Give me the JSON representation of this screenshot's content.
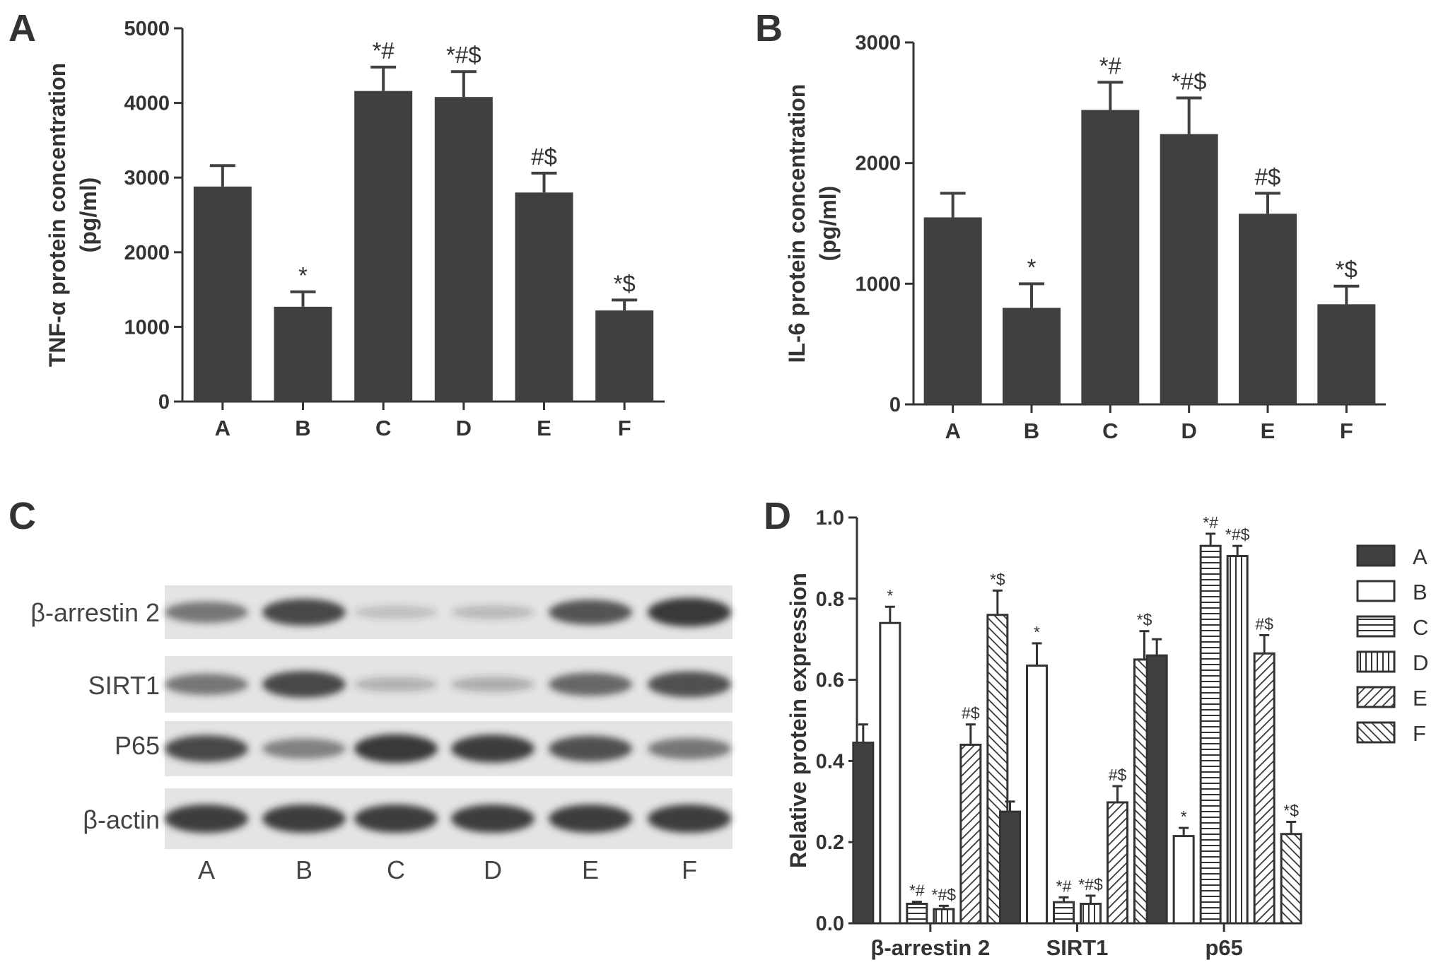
{
  "colors": {
    "dark_bar": "#404040",
    "ink": "#333333",
    "blot_bg": "#e4e4e4",
    "band": "#2e2e2e"
  },
  "chart_data": [
    {
      "panel": "A",
      "type": "bar",
      "ylabel_lines": [
        "TNF-α protein concentration",
        "(pg/ml)"
      ],
      "xlabel": "",
      "categories": [
        "A",
        "B",
        "C",
        "D",
        "E",
        "F"
      ],
      "values": [
        2880,
        1270,
        4160,
        4080,
        2800,
        1220
      ],
      "errors": [
        280,
        200,
        320,
        340,
        260,
        140
      ],
      "significance": [
        "",
        "*",
        "*#",
        "*#$",
        "#$",
        "*$"
      ],
      "ylim": [
        0,
        5000
      ],
      "yticks": [
        0,
        1000,
        2000,
        3000,
        4000,
        5000
      ],
      "ytick_labels": [
        "0",
        "1000",
        "2000",
        "3000",
        "4000",
        "5000"
      ]
    },
    {
      "panel": "B",
      "type": "bar",
      "ylabel_lines": [
        "IL-6 protein concentration",
        "(pg/ml)"
      ],
      "xlabel": "",
      "categories": [
        "A",
        "B",
        "C",
        "D",
        "E",
        "F"
      ],
      "values": [
        1550,
        800,
        2440,
        2240,
        1580,
        830
      ],
      "errors": [
        200,
        200,
        230,
        300,
        170,
        150
      ],
      "significance": [
        "",
        "*",
        "*#",
        "*#$",
        "#$",
        "*$"
      ],
      "ylim": [
        0,
        3000
      ],
      "yticks": [
        0,
        1000,
        2000,
        3000
      ],
      "ytick_labels": [
        "0",
        "1000",
        "2000",
        "3000"
      ]
    },
    {
      "panel": "D",
      "type": "bar",
      "ylabel": "Relative protein expression",
      "xlabel": "",
      "categories": [
        "β-arrestin 2",
        "SIRT1",
        "p65"
      ],
      "series": [
        {
          "name": "A",
          "values": [
            0.445,
            0.275,
            0.66
          ],
          "errors": [
            0.045,
            0.025,
            0.04
          ],
          "sig": [
            "",
            "",
            ""
          ]
        },
        {
          "name": "B",
          "values": [
            0.74,
            0.635,
            0.215
          ],
          "errors": [
            0.04,
            0.055,
            0.02
          ],
          "sig": [
            "*",
            "*",
            "*"
          ]
        },
        {
          "name": "C",
          "values": [
            0.048,
            0.052,
            0.93
          ],
          "errors": [
            0.005,
            0.012,
            0.03
          ],
          "sig": [
            "*#",
            "*#",
            "*#"
          ]
        },
        {
          "name": "D",
          "values": [
            0.035,
            0.048,
            0.905
          ],
          "errors": [
            0.008,
            0.02,
            0.025
          ],
          "sig": [
            "*#$",
            "*#$",
            "*#$"
          ]
        },
        {
          "name": "E",
          "values": [
            0.44,
            0.298,
            0.665
          ],
          "errors": [
            0.05,
            0.04,
            0.045
          ],
          "sig": [
            "#$",
            "#$",
            "#$"
          ]
        },
        {
          "name": "F",
          "values": [
            0.76,
            0.65,
            0.22
          ],
          "errors": [
            0.06,
            0.07,
            0.03
          ],
          "sig": [
            "*$",
            "*$",
            "*$"
          ]
        }
      ],
      "ylim": [
        0,
        1.0
      ],
      "yticks": [
        0,
        0.2,
        0.4,
        0.6,
        0.8,
        1.0
      ],
      "ytick_labels": [
        "0.0",
        "0.2",
        "0.4",
        "0.6",
        "0.8",
        "1.0"
      ],
      "legend": "right"
    }
  ],
  "blot": {
    "panel": "C",
    "proteins": [
      "β-arrestin 2",
      "SIRT1",
      "P65",
      "β-actin"
    ],
    "lanes": [
      "A",
      "B",
      "C",
      "D",
      "E",
      "F"
    ],
    "intensity": [
      [
        0.55,
        0.85,
        0.12,
        0.15,
        0.75,
        0.95
      ],
      [
        0.55,
        0.85,
        0.2,
        0.22,
        0.65,
        0.8
      ],
      [
        0.85,
        0.5,
        0.95,
        0.9,
        0.8,
        0.55
      ],
      [
        0.92,
        0.92,
        0.92,
        0.92,
        0.92,
        0.92
      ]
    ]
  }
}
